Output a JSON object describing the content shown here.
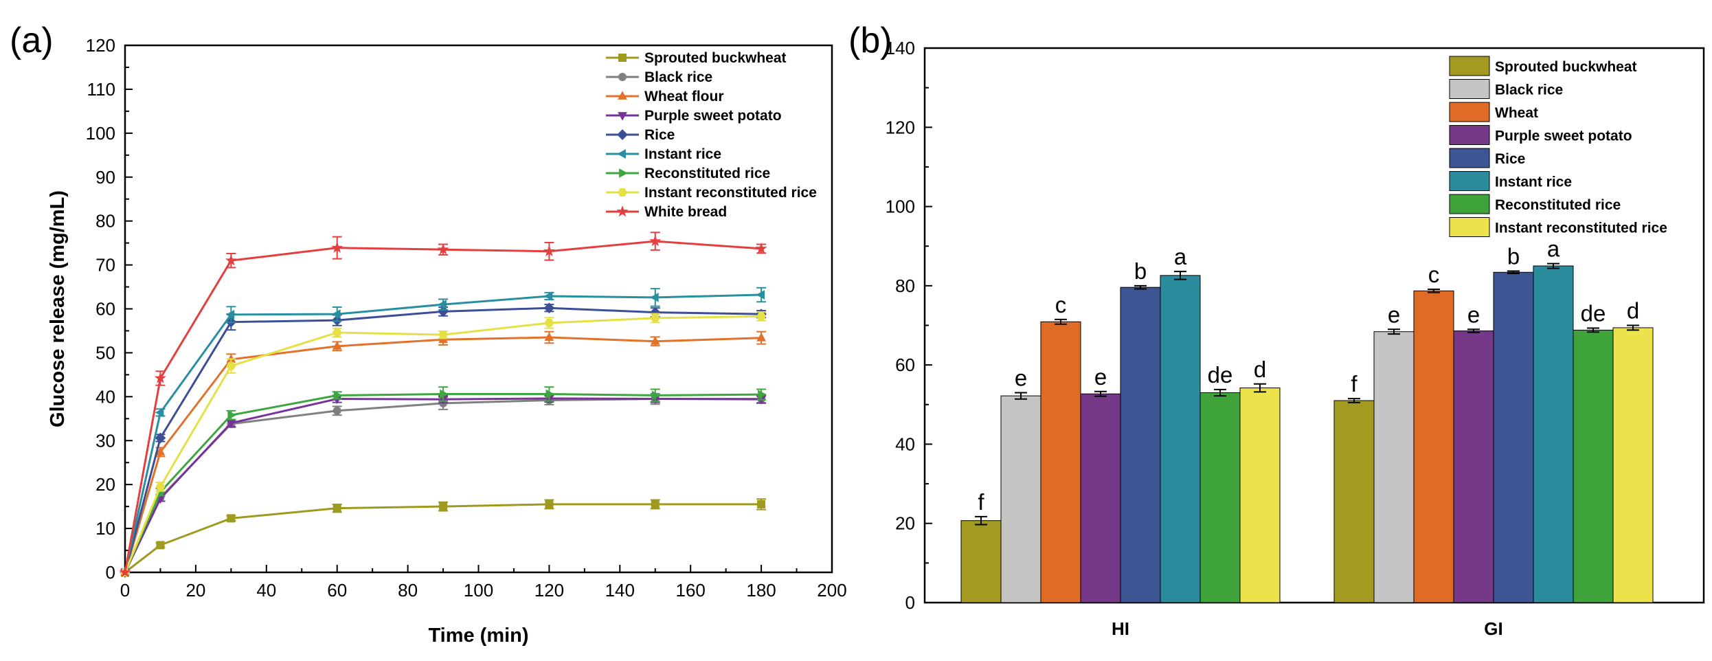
{
  "panel_labels": {
    "a": "(a)",
    "b": "(b)"
  },
  "chart_data": [
    {
      "type": "line",
      "panel": "(a)",
      "xlabel": "Time (min)",
      "ylabel": "Glucose release (mg/mL)",
      "xlim": [
        0,
        200
      ],
      "ylim": [
        0,
        120
      ],
      "xticks": [
        0,
        20,
        40,
        60,
        80,
        100,
        120,
        140,
        160,
        180,
        200
      ],
      "yticks": [
        0,
        10,
        20,
        30,
        40,
        50,
        60,
        70,
        80,
        90,
        100,
        110,
        120
      ],
      "legend_position": "top-right",
      "x": [
        0,
        10,
        30,
        60,
        90,
        120,
        150,
        180
      ],
      "series": [
        {
          "name": "Sprouted buckwheat",
          "color": "#9e9a1f",
          "marker": "square",
          "values": [
            0,
            6.2,
            12.3,
            14.6,
            15.0,
            15.5,
            15.5,
            15.5
          ],
          "errors": [
            0,
            0.5,
            0.6,
            0.9,
            1.0,
            1.0,
            1.0,
            1.2
          ]
        },
        {
          "name": "Black rice",
          "color": "#808080",
          "marker": "circle",
          "values": [
            0,
            17.0,
            33.8,
            36.8,
            38.5,
            39.2,
            39.5,
            39.5
          ],
          "errors": [
            0,
            0.8,
            0.8,
            1.0,
            1.4,
            1.0,
            1.2,
            1.0
          ]
        },
        {
          "name": "Wheat flour",
          "color": "#e2712a",
          "marker": "triangle-up",
          "values": [
            0,
            27.4,
            48.5,
            51.5,
            53.0,
            53.5,
            52.6,
            53.4
          ],
          "errors": [
            0,
            1.0,
            1.2,
            1.0,
            1.2,
            1.3,
            1.0,
            1.4
          ]
        },
        {
          "name": "Purple sweet potato",
          "color": "#76339a",
          "marker": "triangle-down",
          "values": [
            0,
            16.8,
            34.0,
            39.5,
            39.4,
            39.6,
            39.5,
            39.4
          ],
          "errors": [
            0,
            0.6,
            0.8,
            0.8,
            0.8,
            0.8,
            0.8,
            0.8
          ]
        },
        {
          "name": "Rice",
          "color": "#3b4e96",
          "marker": "diamond",
          "values": [
            0,
            30.6,
            57.0,
            57.4,
            59.4,
            60.2,
            59.2,
            58.8
          ],
          "errors": [
            0,
            0.8,
            1.8,
            1.2,
            1.0,
            0.8,
            1.0,
            0.8
          ]
        },
        {
          "name": "Instant rice",
          "color": "#288fa1",
          "marker": "triangle-left",
          "values": [
            0,
            36.4,
            58.7,
            58.8,
            61.0,
            62.9,
            62.6,
            63.2
          ],
          "errors": [
            0,
            0.8,
            1.8,
            1.6,
            1.2,
            0.8,
            2.0,
            1.6
          ]
        },
        {
          "name": "Reconstituted rice",
          "color": "#3ea63e",
          "marker": "triangle-right",
          "values": [
            0,
            18.3,
            35.8,
            40.3,
            40.6,
            40.6,
            40.3,
            40.5
          ],
          "errors": [
            0,
            0.8,
            1.0,
            0.8,
            1.6,
            1.6,
            1.4,
            1.2
          ]
        },
        {
          "name": "Instant reconstituted rice",
          "color": "#e5e046",
          "marker": "hexagon",
          "values": [
            0,
            19.5,
            47.0,
            54.6,
            54.1,
            56.8,
            57.9,
            58.3
          ],
          "errors": [
            0,
            1.0,
            1.6,
            1.0,
            0.8,
            1.2,
            1.0,
            1.0
          ]
        },
        {
          "name": "White bread",
          "color": "#e53e3e",
          "marker": "star",
          "values": [
            0,
            44.2,
            71.0,
            73.9,
            73.5,
            73.1,
            75.4,
            73.7
          ],
          "errors": [
            0,
            1.6,
            1.6,
            2.5,
            1.2,
            2.0,
            2.0,
            1.0
          ]
        }
      ]
    },
    {
      "type": "bar",
      "panel": "(b)",
      "xlabel": "",
      "ylabel": "",
      "ylim": [
        0,
        140
      ],
      "yticks": [
        0,
        20,
        40,
        60,
        80,
        100,
        120,
        140
      ],
      "categories": [
        "HI",
        "GI"
      ],
      "legend_position": "top-right",
      "series": [
        {
          "name": "Sprouted buckwheat",
          "color": "#a39a21",
          "values": [
            20.7,
            51.0
          ],
          "errors": [
            1.0,
            0.5
          ],
          "letters": [
            "f",
            "f"
          ]
        },
        {
          "name": "Black rice",
          "color": "#c4c4c4",
          "values": [
            52.2,
            68.4
          ],
          "errors": [
            0.8,
            0.6
          ],
          "letters": [
            "e",
            "e"
          ]
        },
        {
          "name": "Wheat",
          "color": "#df6b26",
          "values": [
            70.9,
            78.7
          ],
          "errors": [
            0.6,
            0.4
          ],
          "letters": [
            "c",
            "c"
          ]
        },
        {
          "name": "Purple sweet potato",
          "color": "#763988",
          "values": [
            52.7,
            68.6
          ],
          "errors": [
            0.6,
            0.4
          ],
          "letters": [
            "e",
            "e"
          ]
        },
        {
          "name": "Rice",
          "color": "#3e5593",
          "values": [
            79.6,
            83.4
          ],
          "errors": [
            0.4,
            0.3
          ],
          "letters": [
            "b",
            "b"
          ]
        },
        {
          "name": "Instant rice",
          "color": "#2b8c9d",
          "values": [
            82.6,
            85.0
          ],
          "errors": [
            1.0,
            0.6
          ],
          "letters": [
            "a",
            "a"
          ]
        },
        {
          "name": "Reconstituted rice",
          "color": "#3ea33a",
          "values": [
            53.0,
            68.8
          ],
          "errors": [
            0.8,
            0.5
          ],
          "letters": [
            "de",
            "de"
          ]
        },
        {
          "name": "Instant reconstituted rice",
          "color": "#ebe24c",
          "values": [
            54.2,
            69.4
          ],
          "errors": [
            1.0,
            0.6
          ],
          "letters": [
            "d",
            "d"
          ]
        }
      ]
    }
  ]
}
